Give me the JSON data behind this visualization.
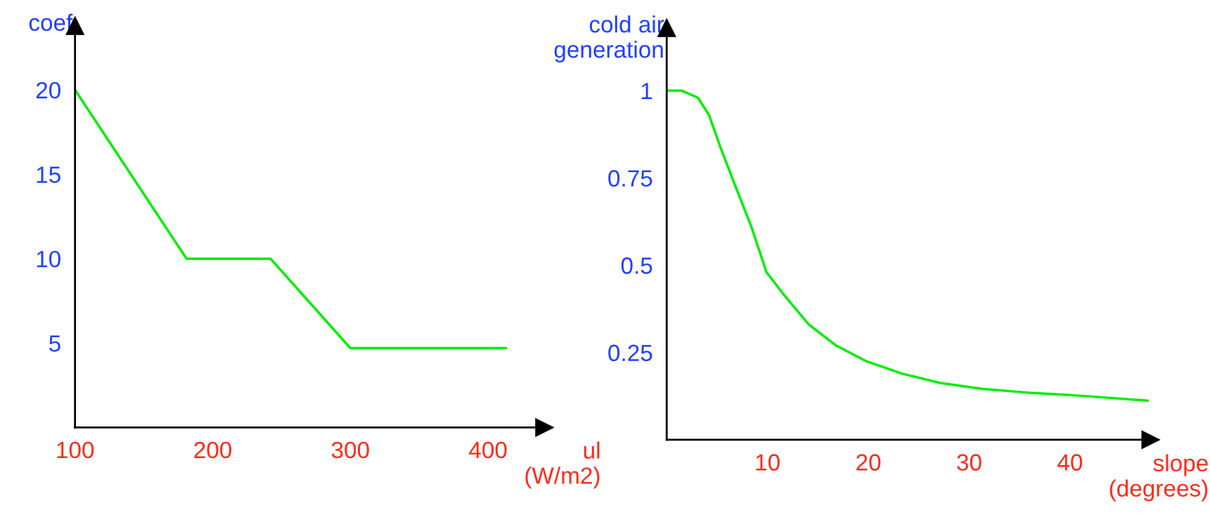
{
  "chart_data": [
    {
      "type": "line",
      "ylabel": "coef",
      "xlabel": "ul\n(W/m2)",
      "x": [
        100,
        181,
        242,
        300,
        413
      ],
      "series": [
        {
          "color": "#00ee00",
          "values": [
            20,
            10,
            10,
            4.7,
            4.7
          ]
        }
      ],
      "xlim": [
        100,
        441
      ],
      "ylim": [
        0,
        23.8
      ],
      "xticks": [
        100,
        200,
        300,
        400
      ],
      "yticks": [
        5,
        10,
        15,
        20
      ],
      "grid": false,
      "legend": false
    },
    {
      "type": "line",
      "ylabel": "cold air\ngeneration",
      "xlabel": "slope\n(degrees)",
      "x": [
        0,
        1.5,
        3.1,
        4.2,
        5.3,
        6.9,
        8.4,
        9.9,
        11.5,
        14.1,
        16.8,
        19.8,
        23.3,
        27.1,
        31.3,
        35.9,
        41.2,
        47.7
      ],
      "series": [
        {
          "color": "#00ee00",
          "values": [
            1.0,
            1.0,
            0.98,
            0.93,
            0.84,
            0.72,
            0.61,
            0.48,
            0.42,
            0.33,
            0.27,
            0.225,
            0.19,
            0.163,
            0.146,
            0.135,
            0.126,
            0.112
          ]
        }
      ],
      "xlim": [
        0,
        48
      ],
      "ylim": [
        0,
        1.18
      ],
      "xticks": [
        10,
        20,
        30,
        40
      ],
      "yticks": [
        {
          "value": 0.25,
          "label": "0.25"
        },
        {
          "value": 0.5,
          "label": "0.5"
        },
        {
          "value": 0.75,
          "label": "0.75"
        },
        1
      ],
      "grid": false,
      "legend": false
    }
  ]
}
